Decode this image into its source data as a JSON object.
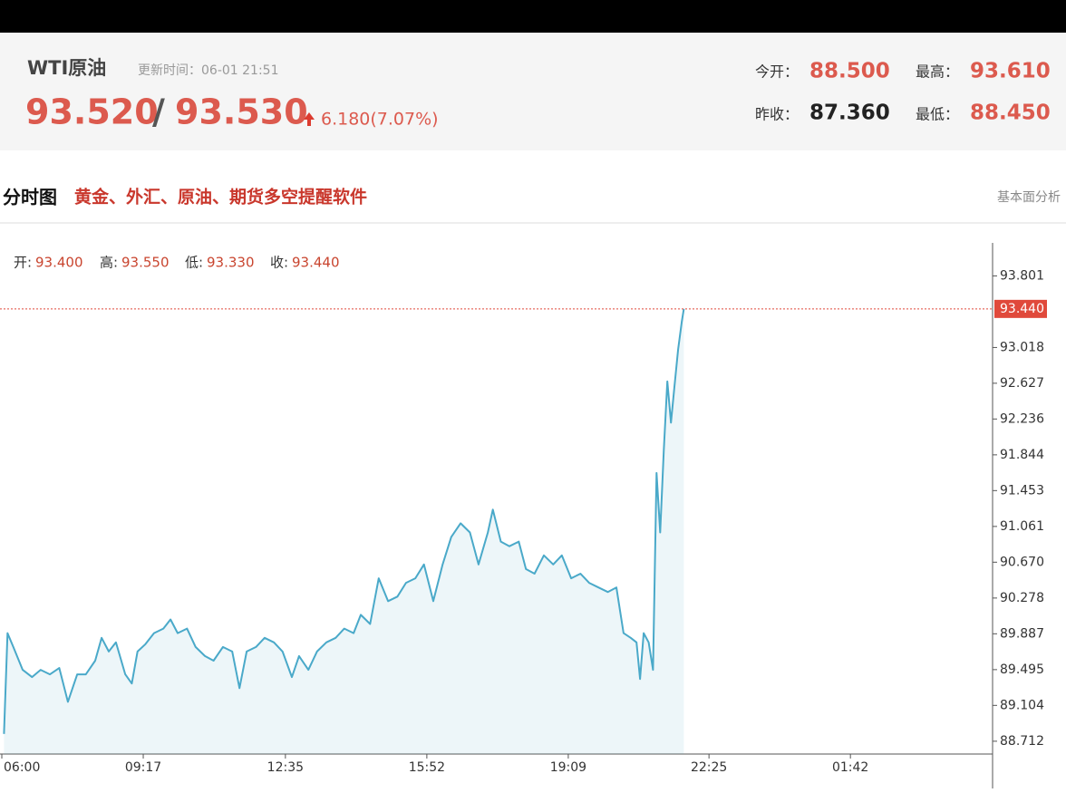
{
  "header": {
    "name": "WTI原油",
    "update_time": "更新时间：06-01 21:51",
    "bid": "93.520",
    "separator": "/",
    "ask": "93.530",
    "change": "6.180(7.07%)",
    "open_label": "今开：",
    "open": "88.500",
    "high_label": "最高：",
    "high": "93.610",
    "prev_close_label": "昨收：",
    "prev_close": "87.360",
    "low_label": "最低：",
    "low": "88.450"
  },
  "section": {
    "title": "分时图",
    "promo": "黄金、外汇、原油、期货多空提醒软件",
    "tab": "基本面分析"
  },
  "chart_data": {
    "type": "line",
    "ohlc": [
      {
        "label": "开:",
        "value": "93.400"
      },
      {
        "label": "高:",
        "value": "93.550"
      },
      {
        "label": "低:",
        "value": "93.330"
      },
      {
        "label": "收:",
        "value": "93.440"
      }
    ],
    "x": [
      3,
      8,
      16,
      29,
      42,
      54,
      67,
      80,
      92,
      105,
      117,
      130,
      139,
      149,
      159,
      172,
      181,
      189,
      200,
      212,
      225,
      235,
      245,
      258,
      270,
      283,
      295,
      308,
      321,
      331,
      341,
      354,
      366,
      379,
      391,
      404,
      414,
      427,
      439,
      452,
      465,
      477,
      490,
      500,
      513,
      525,
      538,
      551,
      563,
      576,
      588,
      601,
      614,
      626,
      639,
      652,
      664,
      677,
      684,
      695,
      707,
      720,
      730,
      742,
      755,
      768,
      780,
      793,
      806,
      818,
      831,
      844,
      856,
      866,
      876,
      884,
      889,
      894,
      901,
      907,
      912,
      917,
      922,
      927,
      932,
      937,
      942,
      947,
      950
    ],
    "series": [
      {
        "color": "#4aa9c9",
        "values": [
          88.792,
          89.894,
          89.743,
          89.493,
          89.413,
          89.493,
          89.443,
          89.513,
          89.143,
          89.443,
          89.443,
          89.593,
          89.843,
          89.693,
          89.793,
          89.443,
          89.343,
          89.693,
          89.773,
          89.894,
          89.944,
          90.044,
          89.894,
          89.944,
          89.743,
          89.643,
          89.593,
          89.743,
          89.693,
          89.293,
          89.693,
          89.743,
          89.843,
          89.793,
          89.693,
          89.413,
          89.643,
          89.493,
          89.693,
          89.793,
          89.843,
          89.944,
          89.894,
          90.094,
          89.994,
          90.494,
          90.244,
          90.294,
          90.444,
          90.494,
          90.645,
          90.244,
          90.645,
          90.945,
          91.095,
          90.995,
          90.645,
          90.995,
          91.245,
          90.895,
          90.845,
          90.895,
          90.595,
          90.544,
          90.745,
          90.645,
          90.745,
          90.494,
          90.544,
          90.444,
          90.394,
          90.344,
          90.394,
          89.894,
          89.843,
          89.793,
          89.393,
          89.894,
          89.793,
          89.493,
          91.646,
          90.995,
          91.896,
          92.647,
          92.196,
          92.597,
          92.997,
          93.298,
          93.44
        ]
      }
    ],
    "xlim": [
      0,
      1380
    ],
    "xticks": [
      {
        "value": 0,
        "label": "06:00"
      },
      {
        "value": 197,
        "label": "09:17"
      },
      {
        "value": 395,
        "label": "12:35"
      },
      {
        "value": 592,
        "label": "15:52"
      },
      {
        "value": 789,
        "label": "19:09"
      },
      {
        "value": 985,
        "label": "22:25"
      },
      {
        "value": 1182,
        "label": "01:42"
      }
    ],
    "ylim": [
      88.572,
      94.162
    ],
    "yticks": [
      88.712,
      89.104,
      89.495,
      89.887,
      90.278,
      {
        "value": 90.67,
        "label": "90.670"
      },
      91.061,
      91.453,
      91.844,
      92.236,
      92.627,
      93.018,
      93.801
    ],
    "price_line": {
      "value": 93.44,
      "label": "93.440",
      "color": "#e0493b"
    }
  }
}
